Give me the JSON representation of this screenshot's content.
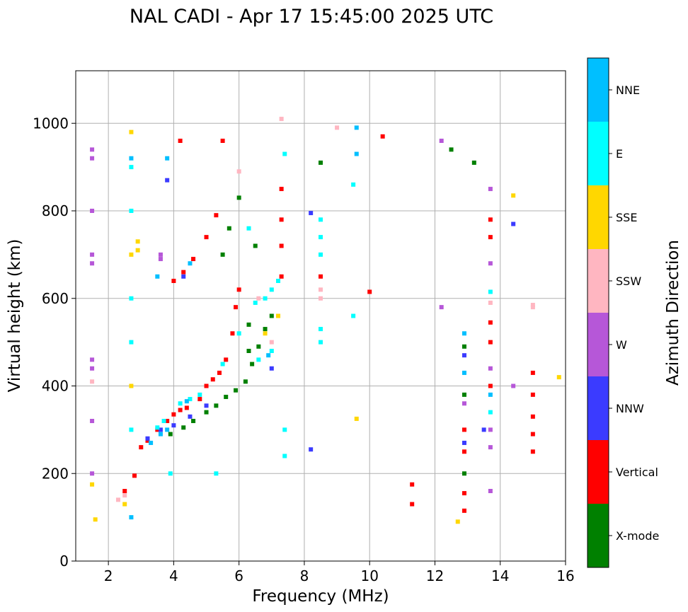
{
  "chart_data": {
    "type": "scatter",
    "title": "NAL CADI - Apr 17 15:45:00 2025 UTC",
    "xlabel": "Frequency (MHz)",
    "ylabel": "Virtual height (km)",
    "xlim": [
      1,
      16
    ],
    "ylim": [
      0,
      1120
    ],
    "xticks": [
      2,
      4,
      6,
      8,
      10,
      12,
      14,
      16
    ],
    "yticks": [
      0,
      200,
      400,
      600,
      800,
      1000
    ],
    "grid": true,
    "colorbar": {
      "label": "Azimuth Direction",
      "categories": [
        {
          "name": "X-mode",
          "color": "#008000"
        },
        {
          "name": "Vertical",
          "color": "#ff0000"
        },
        {
          "name": "NNW",
          "color": "#3b3bff"
        },
        {
          "name": "W",
          "color": "#b657d8"
        },
        {
          "name": "SSW",
          "color": "#ffb6c1"
        },
        {
          "name": "SSE",
          "color": "#ffd700"
        },
        {
          "name": "E",
          "color": "#00ffff"
        },
        {
          "name": "NNE",
          "color": "#00bfff"
        }
      ]
    },
    "series": [
      {
        "name": "Vertical",
        "points": [
          [
            2.5,
            160
          ],
          [
            2.8,
            195
          ],
          [
            3.0,
            260
          ],
          [
            3.2,
            275
          ],
          [
            3.5,
            300
          ],
          [
            3.8,
            320
          ],
          [
            4.0,
            335
          ],
          [
            4.2,
            345
          ],
          [
            4.4,
            350
          ],
          [
            4.8,
            370
          ],
          [
            5.0,
            400
          ],
          [
            5.2,
            415
          ],
          [
            5.4,
            430
          ],
          [
            5.6,
            460
          ],
          [
            5.8,
            520
          ],
          [
            5.9,
            580
          ],
          [
            6.0,
            620
          ],
          [
            4.0,
            640
          ],
          [
            4.3,
            660
          ],
          [
            4.6,
            690
          ],
          [
            5.0,
            740
          ],
          [
            5.3,
            790
          ],
          [
            7.3,
            850
          ],
          [
            7.3,
            780
          ],
          [
            7.3,
            720
          ],
          [
            7.3,
            650
          ],
          [
            8.5,
            650
          ],
          [
            10.4,
            970
          ],
          [
            10.0,
            615
          ],
          [
            11.3,
            175
          ],
          [
            11.3,
            130
          ],
          [
            12.9,
            300
          ],
          [
            12.9,
            250
          ],
          [
            12.9,
            155
          ],
          [
            12.9,
            115
          ],
          [
            13.7,
            500
          ],
          [
            13.7,
            545
          ],
          [
            13.7,
            400
          ],
          [
            13.7,
            780
          ],
          [
            13.7,
            740
          ],
          [
            15.0,
            430
          ],
          [
            15.0,
            380
          ],
          [
            15.0,
            330
          ],
          [
            15.0,
            290
          ],
          [
            15.0,
            250
          ],
          [
            4.2,
            960
          ],
          [
            5.5,
            960
          ]
        ]
      },
      {
        "name": "X-mode",
        "points": [
          [
            3.9,
            290
          ],
          [
            4.3,
            305
          ],
          [
            4.6,
            320
          ],
          [
            5.0,
            340
          ],
          [
            5.3,
            355
          ],
          [
            5.6,
            375
          ],
          [
            5.9,
            390
          ],
          [
            6.2,
            410
          ],
          [
            6.4,
            450
          ],
          [
            6.6,
            490
          ],
          [
            6.8,
            530
          ],
          [
            7.0,
            560
          ],
          [
            5.5,
            700
          ],
          [
            5.7,
            760
          ],
          [
            6.0,
            830
          ],
          [
            6.5,
            720
          ],
          [
            12.5,
            940
          ],
          [
            13.2,
            910
          ],
          [
            12.9,
            490
          ],
          [
            12.9,
            380
          ],
          [
            12.9,
            200
          ],
          [
            8.5,
            910
          ],
          [
            6.3,
            480
          ],
          [
            6.3,
            540
          ]
        ]
      },
      {
        "name": "NNW",
        "points": [
          [
            3.2,
            280
          ],
          [
            3.6,
            300
          ],
          [
            4.0,
            310
          ],
          [
            4.5,
            330
          ],
          [
            5.0,
            355
          ],
          [
            3.8,
            870
          ],
          [
            8.2,
            795
          ],
          [
            8.2,
            255
          ],
          [
            13.5,
            300
          ],
          [
            12.9,
            270
          ],
          [
            12.9,
            470
          ],
          [
            14.4,
            770
          ],
          [
            4.3,
            650
          ],
          [
            7.0,
            440
          ]
        ]
      },
      {
        "name": "W",
        "points": [
          [
            1.5,
            940
          ],
          [
            1.5,
            920
          ],
          [
            1.5,
            800
          ],
          [
            1.5,
            700
          ],
          [
            1.5,
            680
          ],
          [
            1.5,
            460
          ],
          [
            1.5,
            440
          ],
          [
            1.5,
            320
          ],
          [
            1.5,
            200
          ],
          [
            3.6,
            700
          ],
          [
            3.6,
            690
          ],
          [
            13.7,
            850
          ],
          [
            13.7,
            680
          ],
          [
            13.7,
            440
          ],
          [
            13.7,
            300
          ],
          [
            13.7,
            260
          ],
          [
            13.7,
            160
          ],
          [
            14.4,
            400
          ],
          [
            12.9,
            360
          ],
          [
            12.2,
            580
          ],
          [
            12.2,
            960
          ]
        ]
      },
      {
        "name": "SSW",
        "points": [
          [
            1.5,
            410
          ],
          [
            2.3,
            140
          ],
          [
            2.5,
            150
          ],
          [
            6.0,
            890
          ],
          [
            7.3,
            1010
          ],
          [
            8.5,
            620
          ],
          [
            8.5,
            600
          ],
          [
            9.0,
            990
          ],
          [
            15.0,
            585
          ],
          [
            15.0,
            580
          ],
          [
            13.7,
            590
          ],
          [
            6.6,
            600
          ],
          [
            7.0,
            500
          ]
        ]
      },
      {
        "name": "SSE",
        "points": [
          [
            1.5,
            175
          ],
          [
            1.6,
            95
          ],
          [
            2.5,
            130
          ],
          [
            2.7,
            980
          ],
          [
            2.7,
            700
          ],
          [
            2.9,
            730
          ],
          [
            2.9,
            710
          ],
          [
            6.8,
            520
          ],
          [
            7.2,
            560
          ],
          [
            9.6,
            325
          ],
          [
            12.7,
            90
          ],
          [
            14.4,
            835
          ],
          [
            15.8,
            420
          ],
          [
            2.7,
            400
          ]
        ]
      },
      {
        "name": "E",
        "points": [
          [
            2.7,
            900
          ],
          [
            2.7,
            800
          ],
          [
            2.7,
            600
          ],
          [
            2.7,
            500
          ],
          [
            2.7,
            300
          ],
          [
            3.5,
            305
          ],
          [
            3.7,
            320
          ],
          [
            4.2,
            360
          ],
          [
            4.5,
            370
          ],
          [
            4.8,
            380
          ],
          [
            5.5,
            450
          ],
          [
            6.0,
            520
          ],
          [
            6.5,
            590
          ],
          [
            6.8,
            600
          ],
          [
            7.0,
            620
          ],
          [
            7.2,
            640
          ],
          [
            7.4,
            930
          ],
          [
            7.4,
            300
          ],
          [
            7.4,
            240
          ],
          [
            8.5,
            780
          ],
          [
            8.5,
            740
          ],
          [
            8.5,
            700
          ],
          [
            8.5,
            530
          ],
          [
            8.5,
            500
          ],
          [
            9.5,
            860
          ],
          [
            9.5,
            560
          ],
          [
            13.7,
            615
          ],
          [
            13.7,
            340
          ],
          [
            3.9,
            200
          ],
          [
            5.3,
            200
          ],
          [
            6.3,
            760
          ],
          [
            6.6,
            460
          ],
          [
            7.0,
            480
          ]
        ]
      },
      {
        "name": "NNE",
        "points": [
          [
            3.3,
            270
          ],
          [
            3.6,
            290
          ],
          [
            3.8,
            300
          ],
          [
            4.4,
            365
          ],
          [
            4.5,
            680
          ],
          [
            3.5,
            650
          ],
          [
            3.8,
            920
          ],
          [
            9.6,
            990
          ],
          [
            9.6,
            930
          ],
          [
            12.9,
            520
          ],
          [
            12.9,
            430
          ],
          [
            13.7,
            380
          ],
          [
            2.7,
            920
          ],
          [
            2.7,
            100
          ],
          [
            6.9,
            470
          ]
        ]
      }
    ]
  }
}
